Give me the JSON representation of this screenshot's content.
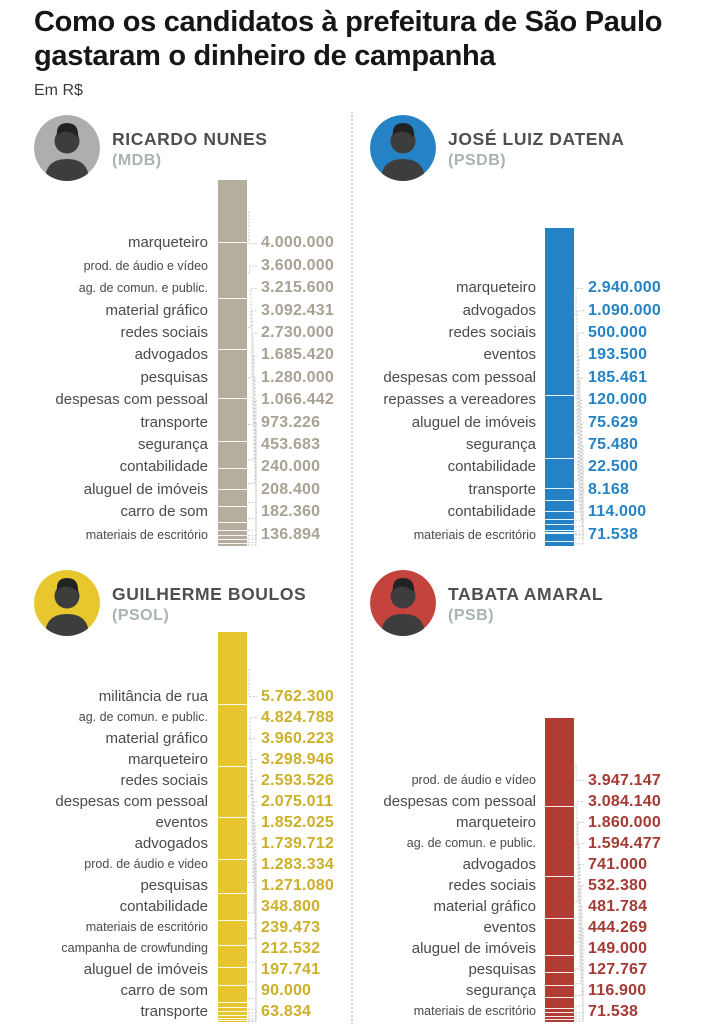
{
  "header": {
    "title": "Como os candidatos à prefeitura de São Paulo gastaram o dinheiro de campanha",
    "subtitle": "Em R$"
  },
  "chart_data": {
    "type": "bar",
    "title": "Como os candidatos à prefeitura de São Paulo gastaram o dinheiro de campanha",
    "unit": "R$",
    "orientation": "vertical-stacked-100pct",
    "charts": [
      {
        "candidate": "RICARDO NUNES",
        "party": "(MDB)",
        "bar_color": "#b5ae9e",
        "value_color": "#a9a294",
        "avatar_bg": "#aeaeae",
        "categories": [
          "marqueteiro",
          "prod. de áudio e vídeo",
          "ag. de comun. e public.",
          "material gráfico",
          "redes sociais",
          "advogados",
          "pesquisas",
          "despesas com pessoal",
          "transporte",
          "segurança",
          "contabilidade",
          "aluguel de imóveis",
          "carro de som",
          "materiais de escritório"
        ],
        "values": [
          4000000,
          3600000,
          3215600,
          3092431,
          2730000,
          1685420,
          1280000,
          1066442,
          973226,
          453683,
          240000,
          208400,
          182360,
          136894
        ]
      },
      {
        "candidate": "JOSÉ LUIZ DATENA",
        "party": "(PSDB)",
        "bar_color": "#2583c5",
        "value_color": "#2583c5",
        "avatar_bg": "#2583c5",
        "categories": [
          "marqueteiro",
          "advogados",
          "redes sociais",
          "eventos",
          "despesas com pessoal",
          "repasses a vereadores",
          "aluguel de imóveis",
          "segurança",
          "contabilidade",
          "transporte",
          "contabilidade",
          "materiais de escritório"
        ],
        "values": [
          2940000,
          1090000,
          500000,
          193500,
          185461,
          120000,
          75629,
          75480,
          22500,
          8168,
          114000,
          71538
        ]
      },
      {
        "candidate": "GUILHERME BOULOS",
        "party": "(PSOL)",
        "bar_color": "#e6c52f",
        "value_color": "#ccb029",
        "avatar_bg": "#e8c62e",
        "categories": [
          "militância de rua",
          "ag. de comun. e public.",
          "material gráfico",
          "marqueteiro",
          "redes sociais",
          "despesas com pessoal",
          "eventos",
          "advogados",
          "prod. de áudio e video",
          "pesquisas",
          "contabilidade",
          "materiais de escritório",
          "campanha de crowfunding",
          "aluguel de imóveis",
          "carro de som",
          "transporte"
        ],
        "values": [
          5762300,
          4824788,
          3960223,
          3298946,
          2593526,
          2075011,
          1852025,
          1739712,
          1283334,
          1271080,
          348800,
          239473,
          212532,
          197741,
          90000,
          63834
        ]
      },
      {
        "candidate": "TABATA AMARAL",
        "party": "(PSB)",
        "bar_color": "#b13c34",
        "value_color": "#a43a33",
        "avatar_bg": "#c4433c",
        "categories": [
          "prod. de áudio e vídeo",
          "despesas com pessoal",
          "marqueteiro",
          "ag. de comun. e public.",
          "advogados",
          "redes sociais",
          "material gráfico",
          "eventos",
          "aluguel de imóveis",
          "pesquisas",
          "segurança",
          "materiais de escritório"
        ],
        "values": [
          3947147,
          3084140,
          1860000,
          1594477,
          741000,
          532380,
          481784,
          444269,
          149000,
          127767,
          116900,
          71538
        ]
      }
    ]
  }
}
